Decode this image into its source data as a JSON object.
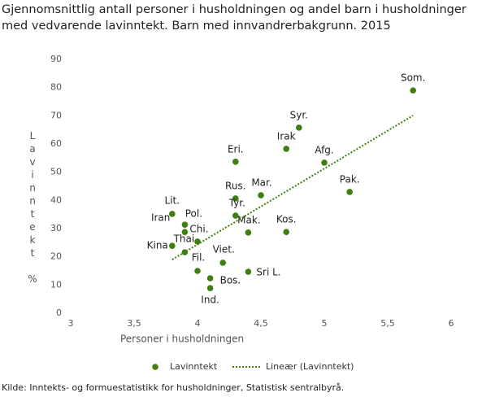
{
  "chart_data": {
    "type": "scatter",
    "title": "Gjennomsnittlig antall personer i husholdningen og andel barn i husholdninger med vedvarende lavinntekt. Barn med innvandrerbakgrunn. 2015",
    "x_label": "Personer i husholdningen",
    "y_label": "Lavinntekt %",
    "source": "Kilde: Inntekts- og formuestatistikk for husholdninger, Statistisk sentralbyrå.",
    "xlim": [
      3,
      6
    ],
    "xticks": [
      3,
      {
        "value": 3.5,
        "label": "3,5"
      },
      4,
      {
        "value": 4.5,
        "label": "4,5"
      },
      5,
      {
        "value": 5.5,
        "label": "5,5"
      },
      6
    ],
    "ylim": [
      0,
      90
    ],
    "yticks": [
      0,
      10,
      20,
      30,
      40,
      50,
      60,
      70,
      80,
      90
    ],
    "grid": false,
    "legend": "bottom",
    "series": [
      {
        "name": "Lavinntekt",
        "color": "#3f7f10",
        "labels": [
          "Som.",
          "Syr.",
          "Irak",
          "Afg.",
          "Eri.",
          "Pak.",
          "Mar.",
          "Rus.",
          "Tyr.",
          "Lit.",
          "Pol.",
          "Iran",
          "Chi.",
          "Mak.",
          "Kos.",
          "Kina",
          "Thai",
          "Viet.",
          "Fil.",
          "Sri L.",
          "Bos.",
          "Ind."
        ],
        "x": [
          5.7,
          4.8,
          4.7,
          5.0,
          4.3,
          5.2,
          4.5,
          4.3,
          4.3,
          3.8,
          3.9,
          3.9,
          4.0,
          4.4,
          4.7,
          3.8,
          3.9,
          4.2,
          4.0,
          4.4,
          4.1,
          4.1
        ],
        "values": [
          79.0,
          65.8,
          58.3,
          53.4,
          53.7,
          43.0,
          41.8,
          40.7,
          34.6,
          35.2,
          31.4,
          28.8,
          25.4,
          28.6,
          28.8,
          23.9,
          21.6,
          17.9,
          15.0,
          14.7,
          12.4,
          8.9
        ]
      },
      {
        "name": "Lineær (Lavinntekt)",
        "color": "#3f7f10",
        "style": "dotted",
        "x": [
          3.8,
          5.7
        ],
        "values": [
          19.0,
          70.1
        ]
      }
    ]
  }
}
